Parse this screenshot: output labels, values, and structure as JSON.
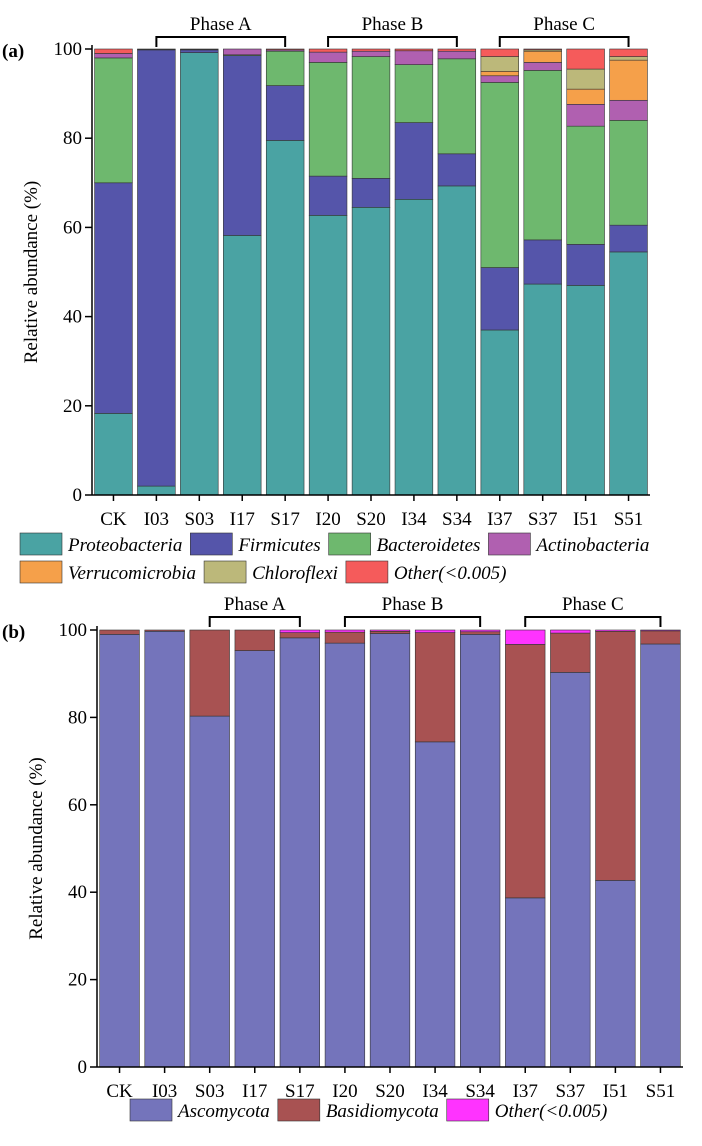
{
  "chart_data": [
    {
      "type": "stacked-bar",
      "panel_label": "(a)",
      "y_label": "Relative abundance (%)",
      "categories": [
        "CK",
        "I03",
        "S03",
        "I17",
        "S17",
        "I20",
        "S20",
        "I34",
        "S34",
        "I37",
        "S37",
        "I51",
        "S51"
      ],
      "ylim": [
        0,
        100
      ],
      "yticks": [
        0,
        20,
        40,
        60,
        80,
        100
      ],
      "phases": [
        {
          "text": "Phase A",
          "from": "I03",
          "to": "S17"
        },
        {
          "text": "Phase B",
          "from": "I20",
          "to": "S34"
        },
        {
          "text": "Phase C",
          "from": "I37",
          "to": "S51"
        }
      ],
      "series": [
        {
          "name": "Proteobacteria",
          "italic": true,
          "color": "#4aa3a3",
          "values": [
            18.3,
            2,
            99.2,
            58.2,
            79.5,
            62.7,
            64.5,
            66.3,
            69.3,
            37,
            47.3,
            47,
            54.5
          ]
        },
        {
          "name": "Firmicutes",
          "italic": true,
          "color": "#5555aa",
          "values": [
            51.7,
            97.8,
            0.6,
            40.3,
            12.3,
            8.8,
            6.5,
            17.2,
            7.2,
            14,
            9.9,
            9.2,
            6
          ]
        },
        {
          "name": "Bacteroidetes",
          "italic": true,
          "color": "#6eb86e",
          "values": [
            28,
            0.1,
            0.1,
            0.2,
            7.7,
            25.5,
            27.3,
            13,
            21.3,
            41.5,
            38,
            26.5,
            23.5
          ]
        },
        {
          "name": "Actinobacteria",
          "italic": true,
          "color": "#b060b0",
          "values": [
            1,
            0,
            0,
            1.3,
            0.3,
            2.3,
            1.2,
            3.1,
            1.7,
            1.5,
            1.8,
            4.9,
            4.5
          ]
        },
        {
          "name": "Verrucomicrobia",
          "italic": true,
          "color": "#f5a04a",
          "values": [
            0,
            0,
            0,
            0,
            0,
            0,
            0,
            0,
            0,
            1,
            2.5,
            3.4,
            9
          ]
        },
        {
          "name": "Chloroflexi",
          "italic": true,
          "color": "#bcb87a",
          "values": [
            0,
            0,
            0,
            0,
            0,
            0,
            0,
            0,
            0,
            3.3,
            0.3,
            4.5,
            0.8
          ]
        },
        {
          "name": "Other(<0.005)",
          "italic": true,
          "color": "#f55b5b",
          "values": [
            1,
            0.1,
            0.1,
            0,
            0.2,
            0.7,
            0.5,
            0.4,
            0.5,
            1.7,
            0.2,
            4.5,
            1.7
          ]
        }
      ]
    },
    {
      "type": "stacked-bar",
      "panel_label": "(b)",
      "y_label": "Relative abundance (%)",
      "categories": [
        "CK",
        "I03",
        "S03",
        "I17",
        "S17",
        "I20",
        "S20",
        "I34",
        "S34",
        "I37",
        "S37",
        "I51",
        "S51"
      ],
      "ylim": [
        0,
        100
      ],
      "yticks": [
        0,
        20,
        40,
        60,
        80,
        100
      ],
      "phases": [
        {
          "text": "Phase A",
          "from": "S03",
          "to": "S17"
        },
        {
          "text": "Phase B",
          "from": "I20",
          "to": "S34"
        },
        {
          "text": "Phase C",
          "from": "I37",
          "to": "S51"
        }
      ],
      "series": [
        {
          "name": "Ascomycota",
          "italic": true,
          "color": "#7474bb",
          "values": [
            99,
            99.7,
            80.3,
            95.3,
            98.2,
            97,
            99.2,
            74.4,
            99,
            38.7,
            90.3,
            42.7,
            96.8
          ]
        },
        {
          "name": "Basidiomycota",
          "italic": true,
          "color": "#a85252",
          "values": [
            1,
            0.3,
            19.7,
            4.7,
            1.2,
            2.5,
            0.5,
            25,
            0.6,
            58,
            9,
            57,
            3
          ]
        },
        {
          "name": "Other(<0.005)",
          "italic": true,
          "color": "#ff33ff",
          "values": [
            0,
            0,
            0,
            0,
            0.6,
            0.5,
            0.3,
            0.6,
            0.4,
            3.3,
            0.7,
            0.3,
            0.2
          ]
        }
      ]
    }
  ]
}
